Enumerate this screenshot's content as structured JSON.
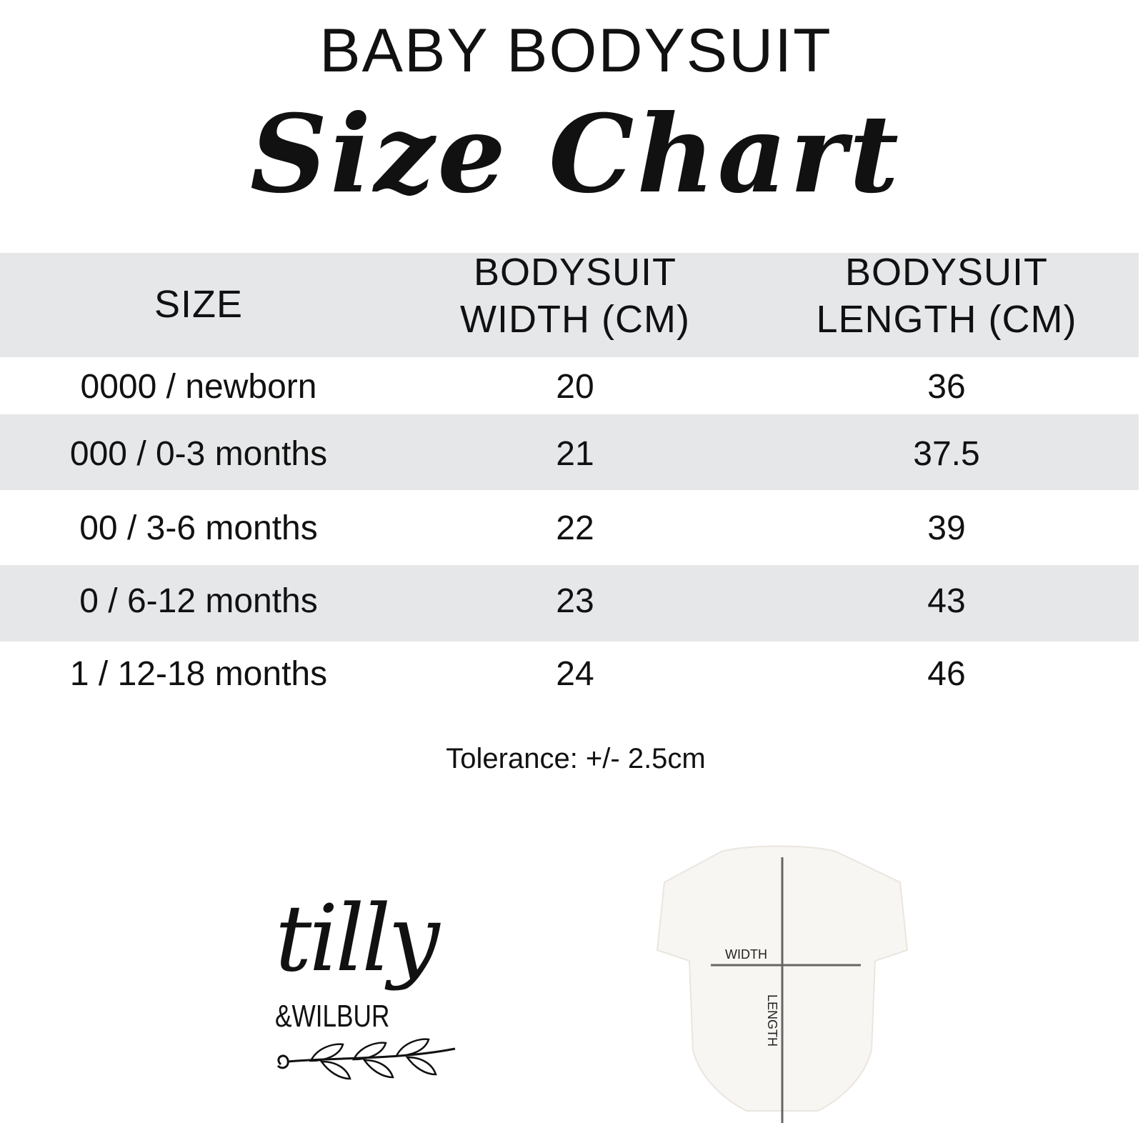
{
  "title": "BABY BODYSUIT",
  "subtitle": "Size Chart",
  "table": {
    "headers": [
      "SIZE",
      "BODYSUIT\nWIDTH (CM)",
      "BODYSUIT\nLENGTH (CM)"
    ],
    "header_lines": [
      [
        "SIZE"
      ],
      [
        "BODYSUIT",
        "WIDTH (CM)"
      ],
      [
        "BODYSUIT",
        "LENGTH (CM)"
      ]
    ],
    "rows": [
      [
        "0000 / newborn",
        "20",
        "36"
      ],
      [
        "000 / 0-3 months",
        "21",
        "37.5"
      ],
      [
        "00 / 3-6 months",
        "22",
        "39"
      ],
      [
        "0 / 6-12 months",
        "23",
        "43"
      ],
      [
        "1 / 12-18 months",
        "24",
        "46"
      ]
    ],
    "stripe_color": "#e6e7e9"
  },
  "tolerance": "Tolerance: +/- 2.5cm",
  "logo": {
    "line1": "tilly",
    "line2": "&WILBUR"
  },
  "diagram": {
    "width_label": "WIDTH",
    "length_label": "LENGTH"
  }
}
